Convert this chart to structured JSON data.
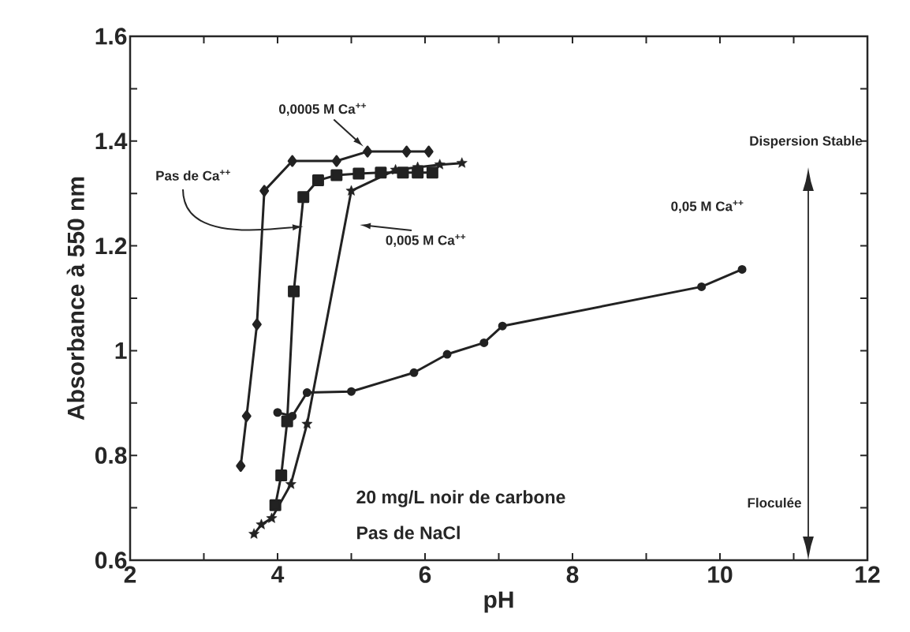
{
  "chart_data": {
    "type": "line",
    "xlabel": "pH",
    "ylabel": "Absorbance à 550 nm",
    "xlim": [
      2,
      12
    ],
    "ylim": [
      0.6,
      1.6
    ],
    "xticks": [
      2,
      {
        "value": 3,
        "label": null
      },
      4,
      {
        "value": 5,
        "label": null
      },
      6,
      {
        "value": 7,
        "label": null
      },
      8,
      {
        "value": 9,
        "label": null
      },
      10,
      {
        "value": 11,
        "label": null
      },
      12
    ],
    "yticks": [
      0.6,
      {
        "value": 0.7,
        "label": null
      },
      0.8,
      {
        "value": 0.9,
        "label": null
      },
      1,
      {
        "value": 1.1,
        "label": null
      },
      1.2,
      {
        "value": 1.3,
        "label": null
      },
      1.4,
      {
        "value": 1.5,
        "label": null
      },
      1.6
    ],
    "grid": false,
    "line_style": "solid",
    "series": [
      {
        "color": "#222222",
        "marker": "diamond",
        "x": [
          3.5,
          3.58,
          3.72,
          3.82,
          4.2,
          4.8,
          5.22,
          5.75,
          6.05
        ],
        "values": [
          0.78,
          0.875,
          1.05,
          1.305,
          1.362,
          1.362,
          1.38,
          1.38,
          1.38
        ]
      },
      {
        "color": "#222222",
        "marker": "square",
        "x": [
          3.97,
          4.05,
          4.13,
          4.22,
          4.35,
          4.55,
          4.8,
          5.1,
          5.4,
          5.7,
          5.9,
          6.1
        ],
        "values": [
          0.705,
          0.762,
          0.865,
          1.113,
          1.293,
          1.325,
          1.335,
          1.338,
          1.34,
          1.34,
          1.34,
          1.34
        ]
      },
      {
        "color": "#222222",
        "marker": "star",
        "x": [
          3.68,
          3.78,
          3.92,
          4.18,
          4.4,
          5.0,
          5.6,
          5.9,
          6.2,
          6.5
        ],
        "values": [
          0.65,
          0.668,
          0.68,
          0.745,
          0.86,
          1.305,
          1.345,
          1.35,
          1.355,
          1.358
        ]
      },
      {
        "color": "#222222",
        "marker": "circle",
        "x": [
          4.0,
          4.2,
          4.4,
          5.0,
          5.85,
          6.3,
          6.8,
          7.05,
          9.75,
          10.3
        ],
        "values": [
          0.882,
          0.875,
          0.92,
          0.922,
          0.958,
          0.993,
          1.015,
          1.047,
          1.122,
          1.155
        ]
      }
    ],
    "annotations": [
      {
        "text": "0,0005 M Ca$^{++}$",
        "x": 5.2,
        "y": 1.385
      },
      "Pas de Ca$^{++}$",
      "0,005 M Ca$^{++}$",
      "0,05 M Ca$^{++}$",
      "Dispersion  Stable",
      "Floculée",
      "20 mg/L noir de carbone",
      "Pas de NaCl"
    ]
  }
}
